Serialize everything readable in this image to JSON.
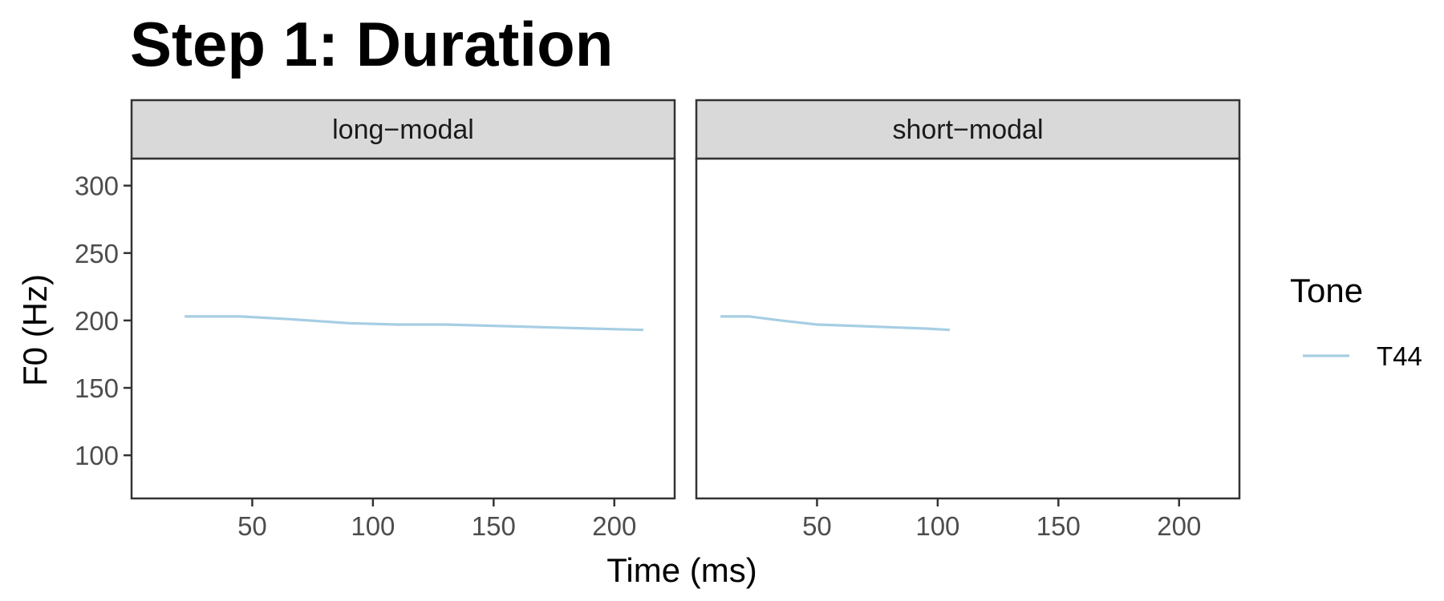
{
  "chart_data": {
    "type": "line",
    "title": "Step 1: Duration",
    "xlabel": "Time (ms)",
    "ylabel": "F0 (Hz)",
    "xlim": [
      0,
      225
    ],
    "ylim": [
      68,
      320
    ],
    "x_ticks": [
      50,
      100,
      150,
      200
    ],
    "y_ticks": [
      100,
      150,
      200,
      250,
      300
    ],
    "grid": false,
    "legend": {
      "title": "Tone",
      "position": "right",
      "entries": [
        {
          "label": "T44",
          "color": "#a6cee3"
        }
      ]
    },
    "panels": [
      {
        "strip": "long−modal",
        "series": [
          {
            "name": "T44",
            "color": "#a6cee3",
            "x": [
              22,
              45,
              65,
              90,
              110,
              130,
              150,
              170,
              190,
              212
            ],
            "y": [
              203,
              203,
              201,
              198,
              197,
              197,
              196,
              195,
              194,
              193
            ]
          }
        ]
      },
      {
        "strip": "short−modal",
        "series": [
          {
            "name": "T44",
            "color": "#a6cee3",
            "x": [
              10,
              22,
              35,
              50,
              65,
              80,
              95,
              105
            ],
            "y": [
              203,
              203,
              200,
              197,
              196,
              195,
              194,
              193
            ]
          }
        ]
      }
    ]
  }
}
